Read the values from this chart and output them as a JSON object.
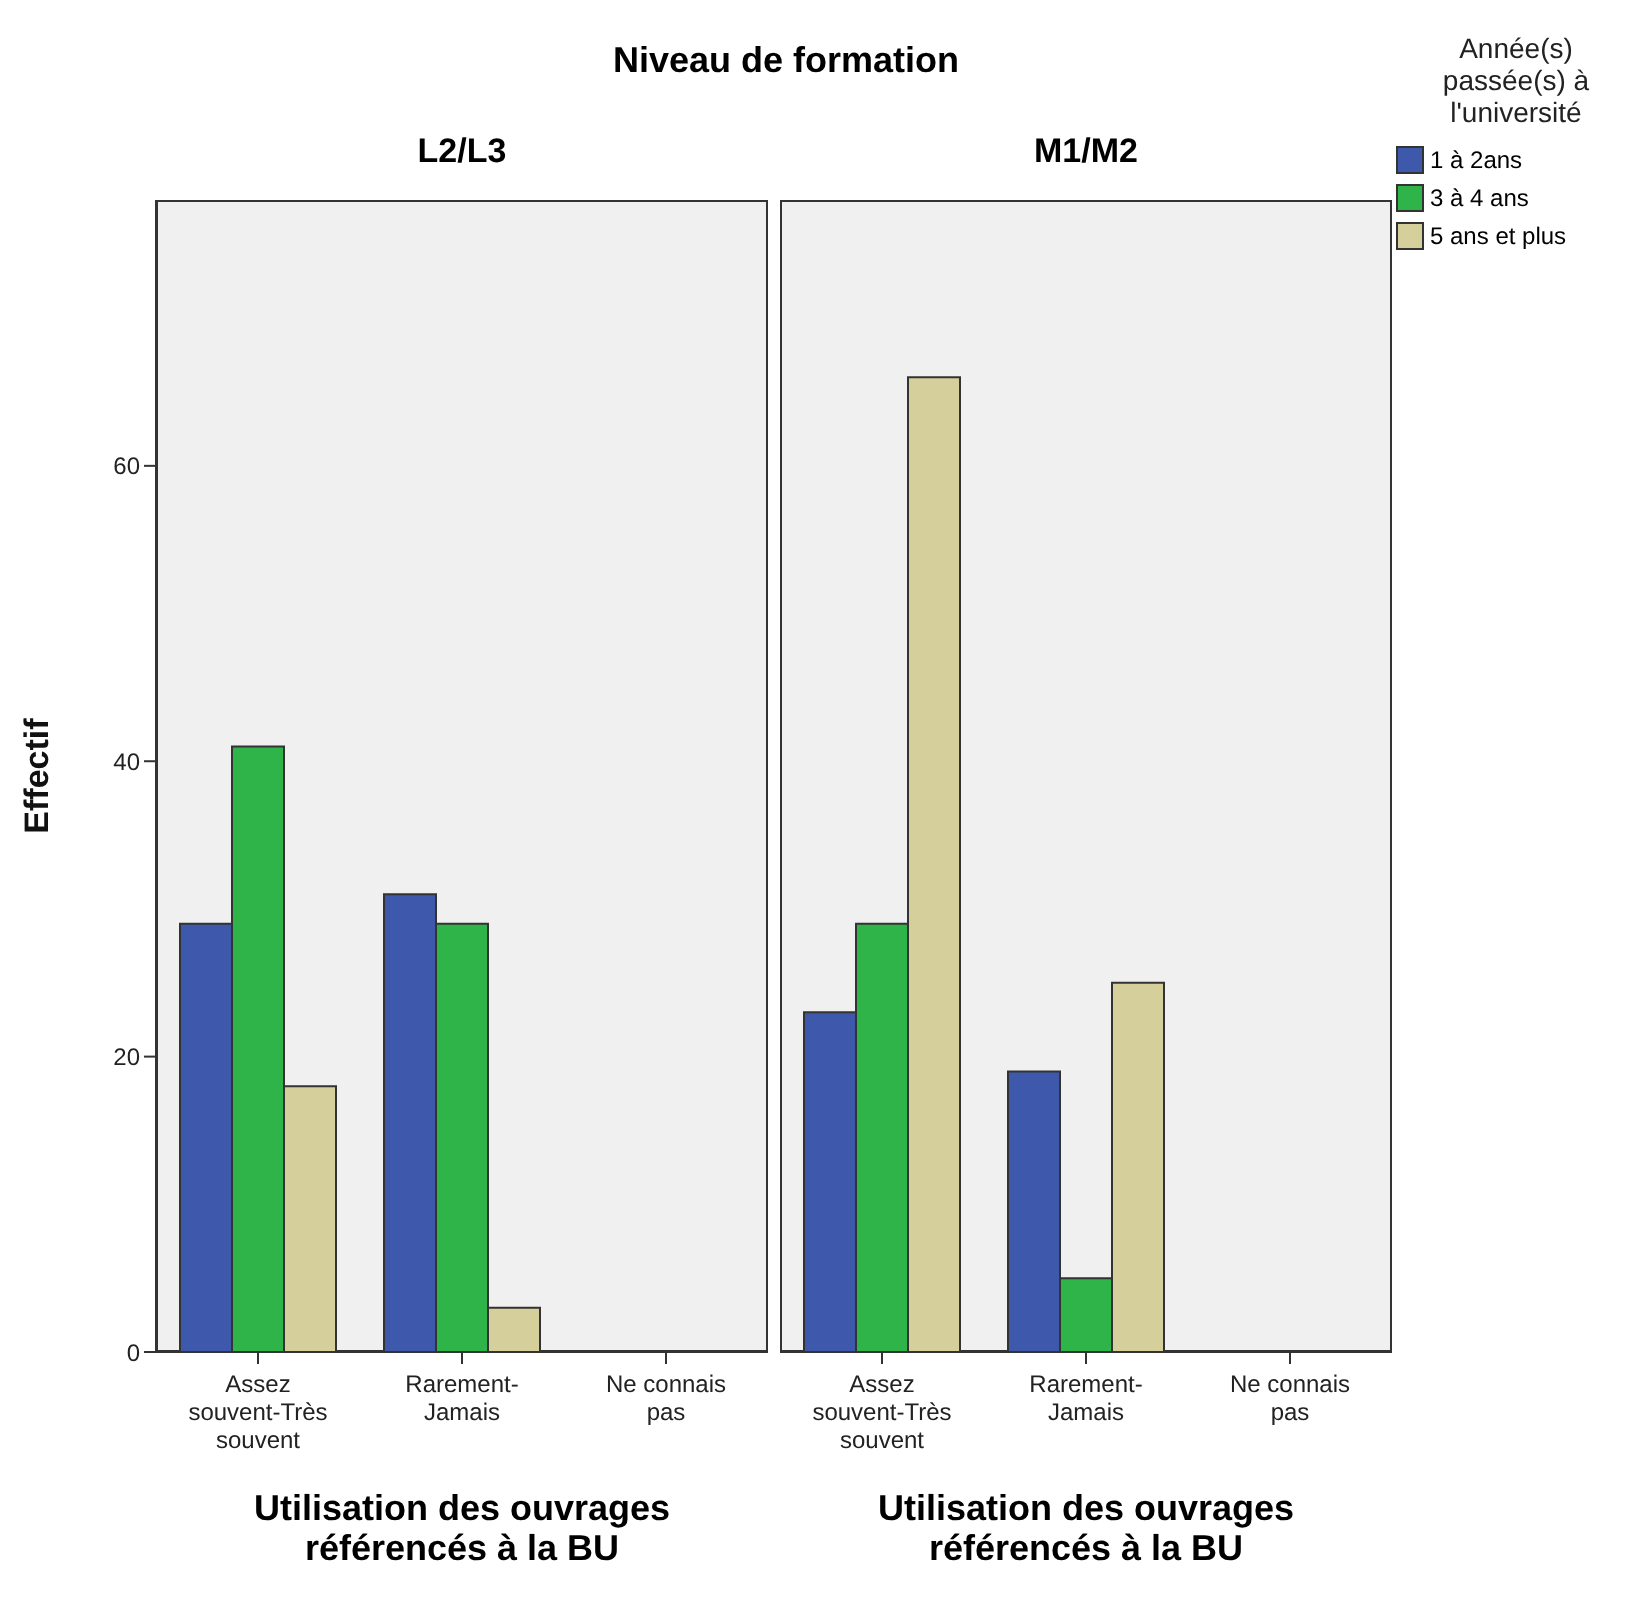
{
  "chart_data": [
    {
      "type": "bar",
      "title": "Niveau de formation",
      "subtitle": "L2/L3",
      "xlabel": "Utilisation des ouvrages référencés à la BU",
      "ylabel": "Effectif",
      "categories": [
        "Assez souvent-Très souvent",
        "Rarement-Jamais",
        "Ne connais pas"
      ],
      "series": [
        {
          "color": "#3e58ac",
          "values": [
            29,
            31,
            0
          ]
        },
        {
          "color": "#2fb44a",
          "values": [
            41,
            29,
            0
          ]
        },
        {
          "color": "#d5cf9b",
          "values": [
            18,
            3,
            0
          ]
        }
      ],
      "ylim": [
        0,
        78
      ],
      "yticks": [
        0,
        20,
        40,
        60
      ]
    },
    {
      "type": "bar",
      "subtitle": "M1/M2",
      "xlabel": "Utilisation des ouvrages référencés à la BU",
      "legend_title": "Année(s) passée(s) à l'université",
      "categories": [
        "Assez souvent-Très souvent",
        "Rarement-Jamais",
        "Ne connais pas"
      ],
      "series": [
        {
          "name": "1 à 2ans",
          "color": "#3e58ac",
          "values": [
            23,
            19,
            0
          ]
        },
        {
          "name": "3 à 4 ans",
          "color": "#2fb44a",
          "values": [
            29,
            5,
            0
          ]
        },
        {
          "name": "5 ans et plus",
          "color": "#d5cf9b",
          "values": [
            66,
            25,
            0
          ]
        }
      ],
      "ylim": [
        0,
        78
      ],
      "yticks": [
        0,
        20,
        40,
        60
      ],
      "tick_labels": "x",
      "legend": "top right"
    }
  ]
}
